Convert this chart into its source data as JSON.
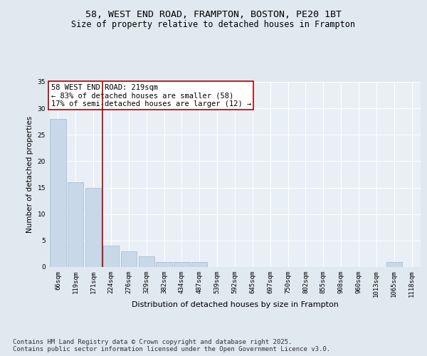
{
  "title1": "58, WEST END ROAD, FRAMPTON, BOSTON, PE20 1BT",
  "title2": "Size of property relative to detached houses in Frampton",
  "xlabel": "Distribution of detached houses by size in Frampton",
  "ylabel": "Number of detached properties",
  "bar_labels": [
    "66sqm",
    "119sqm",
    "171sqm",
    "224sqm",
    "276sqm",
    "329sqm",
    "382sqm",
    "434sqm",
    "487sqm",
    "539sqm",
    "592sqm",
    "645sqm",
    "697sqm",
    "750sqm",
    "802sqm",
    "855sqm",
    "908sqm",
    "960sqm",
    "1013sqm",
    "1065sqm",
    "1118sqm"
  ],
  "bar_values": [
    28,
    16,
    15,
    4,
    3,
    2,
    1,
    1,
    1,
    0,
    0,
    0,
    0,
    0,
    0,
    0,
    0,
    0,
    0,
    1,
    0
  ],
  "bar_color": "#c8d8e8",
  "bar_edge_color": "#a0b8cc",
  "vline_index": 2,
  "vline_color": "#aa0000",
  "annotation_text": "58 WEST END ROAD: 219sqm\n← 83% of detached houses are smaller (58)\n17% of semi-detached houses are larger (12) →",
  "annotation_box_color": "#ffffff",
  "annotation_box_edge": "#aa0000",
  "ylim": [
    0,
    35
  ],
  "yticks": [
    0,
    5,
    10,
    15,
    20,
    25,
    30,
    35
  ],
  "bg_color": "#e0e8f0",
  "plot_bg_color": "#e8eff6",
  "footer": "Contains HM Land Registry data © Crown copyright and database right 2025.\nContains public sector information licensed under the Open Government Licence v3.0.",
  "title_fontsize": 9.5,
  "subtitle_fontsize": 8.5,
  "annotation_fontsize": 7.5,
  "ylabel_fontsize": 7.5,
  "xlabel_fontsize": 8,
  "tick_fontsize": 6.5,
  "footer_fontsize": 6.5
}
